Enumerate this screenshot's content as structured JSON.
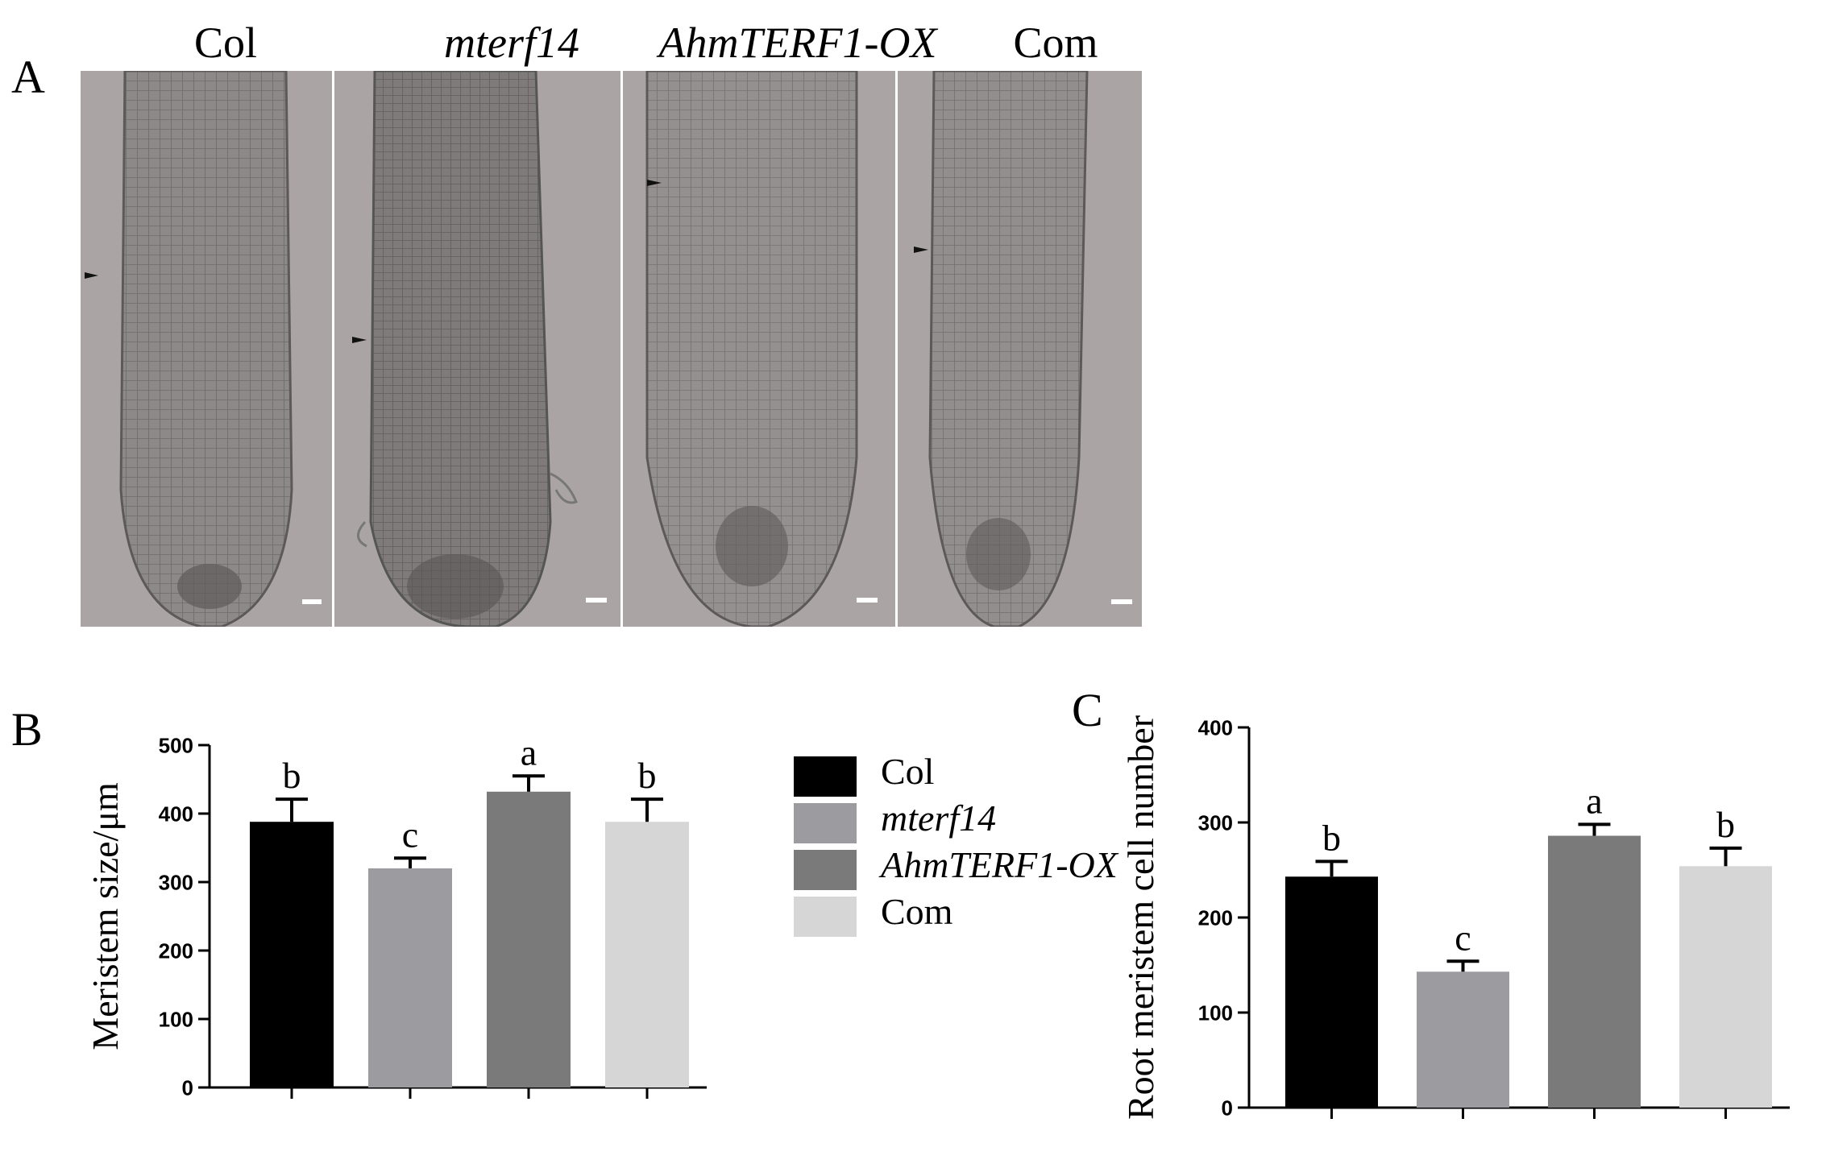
{
  "panels": {
    "a": "A",
    "b": "B",
    "c": "C"
  },
  "micrographs": [
    {
      "label": "Col",
      "italic": false
    },
    {
      "label": "mterf14",
      "italic": true
    },
    {
      "label": "AhmTERF1-OX",
      "italic": true
    },
    {
      "label": "Com",
      "italic": false
    }
  ],
  "legend": [
    {
      "label": "Col",
      "italic": false,
      "color": "#000000"
    },
    {
      "label": "mterf14",
      "italic": true,
      "color": "#9b9ba0"
    },
    {
      "label": "AhmTERF1-OX",
      "italic": true,
      "color": "#7a7a7a"
    },
    {
      "label": "Com",
      "italic": false,
      "color": "#d6d6d6"
    }
  ],
  "colors": {
    "micrograph_bg": "#a9a3a3",
    "root_tissue": "#8a8585"
  },
  "chart_data": [
    {
      "type": "bar",
      "panel": "B",
      "categories": [
        "Col",
        "mterf14",
        "AhmTERF1-OX",
        "Com"
      ],
      "values": [
        388,
        320,
        432,
        388
      ],
      "errors": [
        33,
        15,
        23,
        33
      ],
      "significance": [
        "b",
        "c",
        "a",
        "b"
      ],
      "colors": [
        "#000000",
        "#9b9ba0",
        "#7a7a7a",
        "#d6d6d6"
      ],
      "ylabel": "Meristem size/μm",
      "ylim": [
        0,
        500
      ],
      "yticks": [
        0,
        100,
        200,
        300,
        400,
        500
      ],
      "grid": false
    },
    {
      "type": "bar",
      "panel": "C",
      "categories": [
        "Col",
        "mterf14",
        "AhmTERF1-OX",
        "Com"
      ],
      "values": [
        243,
        143,
        286,
        254
      ],
      "errors": [
        16,
        11,
        12,
        19
      ],
      "significance": [
        "b",
        "c",
        "a",
        "b"
      ],
      "colors": [
        "#000000",
        "#9b9ba0",
        "#7a7a7a",
        "#d6d6d6"
      ],
      "ylabel": "Root meristem cell number",
      "ylim": [
        0,
        400
      ],
      "yticks": [
        0,
        100,
        200,
        300,
        400
      ],
      "grid": false
    }
  ]
}
